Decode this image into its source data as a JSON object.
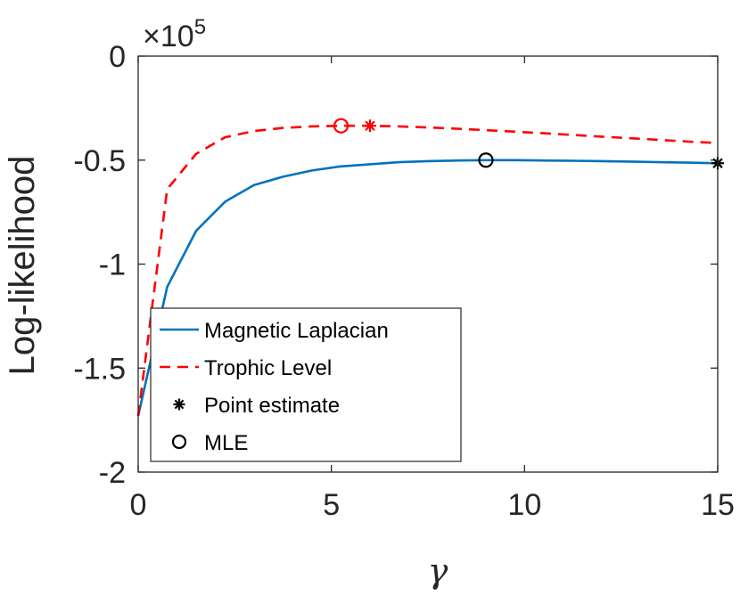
{
  "chart_data": {
    "type": "line",
    "title": "",
    "xlabel": "γ",
    "ylabel": "Log-likelihood",
    "exponent_label": "×10",
    "exponent_power": "5",
    "xlim": [
      0,
      15
    ],
    "ylim": [
      -2,
      0
    ],
    "x_ticks": [
      {
        "value": 0,
        "label": "0"
      },
      {
        "value": 5,
        "label": "5"
      },
      {
        "value": 10,
        "label": "10"
      },
      {
        "value": 15,
        "label": "15"
      }
    ],
    "y_ticks": [
      {
        "value": 0,
        "label": "0"
      },
      {
        "value": -0.5,
        "label": "-0.5"
      },
      {
        "value": -1,
        "label": "-1"
      },
      {
        "value": -1.5,
        "label": "-1.5"
      },
      {
        "value": -2,
        "label": "-2"
      }
    ],
    "grid": false,
    "legend_position": "bottom-left",
    "series": [
      {
        "name": "Magnetic Laplacian",
        "color": "#0072BD",
        "style": "solid",
        "x": [
          0,
          0.75,
          1.5,
          2.25,
          3.0,
          3.75,
          4.5,
          5.25,
          6.0,
          6.75,
          7.5,
          8.25,
          9.0,
          9.75,
          10.5,
          11.25,
          12.0,
          12.75,
          13.5,
          14.25,
          15.0
        ],
        "y": [
          -1.73,
          -1.11,
          -0.84,
          -0.7,
          -0.62,
          -0.58,
          -0.55,
          -0.53,
          -0.52,
          -0.51,
          -0.505,
          -0.502,
          -0.5,
          -0.5,
          -0.502,
          -0.503,
          -0.505,
          -0.507,
          -0.51,
          -0.512,
          -0.515
        ]
      },
      {
        "name": "Trophic Level",
        "color": "#FF0000",
        "style": "dashed",
        "x": [
          0,
          0.75,
          1.5,
          2.25,
          3.0,
          3.75,
          4.5,
          5.25,
          6.0,
          6.75,
          7.5,
          8.25,
          9.0,
          9.75,
          10.5,
          11.25,
          12.0,
          12.75,
          13.5,
          14.25,
          15.0
        ],
        "y": [
          -1.73,
          -0.64,
          -0.47,
          -0.39,
          -0.36,
          -0.345,
          -0.338,
          -0.335,
          -0.335,
          -0.338,
          -0.343,
          -0.349,
          -0.356,
          -0.363,
          -0.371,
          -0.379,
          -0.387,
          -0.395,
          -0.403,
          -0.411,
          -0.418
        ]
      }
    ],
    "markers": [
      {
        "name": "Point estimate",
        "kind": "point-estimate",
        "series": "Trophic Level",
        "color": "#FF0000",
        "x": 6.0,
        "y": -0.335
      },
      {
        "name": "MLE",
        "kind": "mle",
        "series": "Trophic Level",
        "color": "#FF0000",
        "x": 5.25,
        "y": -0.335
      },
      {
        "name": "MLE",
        "kind": "mle",
        "series": "Magnetic Laplacian",
        "color": "#000000",
        "x": 9.0,
        "y": -0.5
      },
      {
        "name": "Point estimate",
        "kind": "point-estimate",
        "series": "Magnetic Laplacian",
        "color": "#000000",
        "x": 15.0,
        "y": -0.515
      }
    ],
    "legend": [
      {
        "label": "Magnetic Laplacian",
        "kind": "line-solid",
        "color": "#0072BD"
      },
      {
        "label": "Trophic Level",
        "kind": "line-dashed",
        "color": "#FF0000"
      },
      {
        "label": "Point estimate",
        "kind": "point-estimate",
        "color": "#000000"
      },
      {
        "label": "MLE",
        "kind": "mle",
        "color": "#000000"
      }
    ]
  }
}
